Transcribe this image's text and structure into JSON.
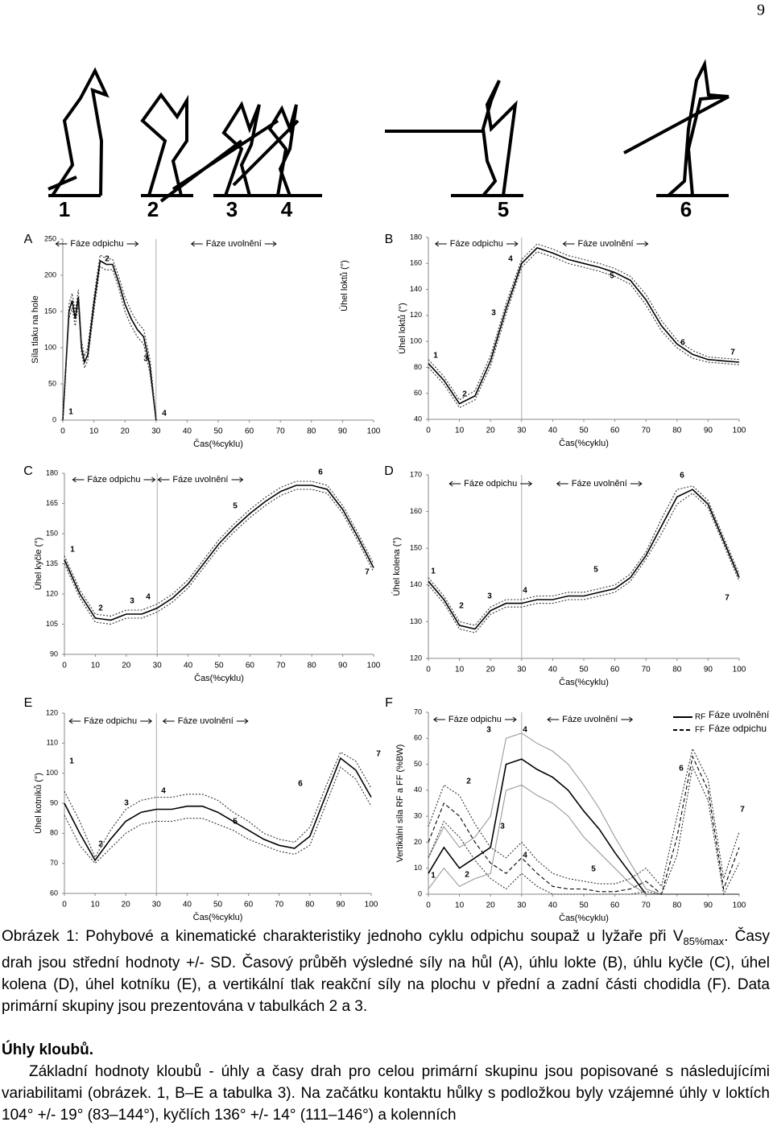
{
  "page_number": "9",
  "figure": {
    "stick_labels": [
      "1",
      "2",
      "3",
      "4",
      "5",
      "6"
    ],
    "charts": [
      {
        "type": "line",
        "letter": "A",
        "ylabel": "Síla tlaku na hole",
        "extra_label": "Úhel loktů (°)",
        "xlabel": "Čas(%cyklu)",
        "phases": [
          "Fáze odpichu",
          "Fáze uvolnění"
        ],
        "phase_boundary": 30,
        "x": [
          0,
          2,
          3,
          4,
          5,
          6,
          7,
          8,
          10,
          12,
          14,
          16,
          18,
          20,
          22,
          24,
          26,
          28,
          30
        ],
        "xlim": [
          0,
          100
        ],
        "xticks": [
          0,
          10,
          20,
          30,
          40,
          50,
          60,
          70,
          80,
          90,
          100
        ],
        "ylim": [
          0,
          250
        ],
        "yticks": [
          0,
          50,
          100,
          150,
          200,
          250
        ],
        "annotations": [
          "1",
          "2",
          "3",
          "4"
        ],
        "series": [
          {
            "style": "solid",
            "color": "#000000",
            "values": [
              0,
              150,
              165,
              140,
              170,
              100,
              80,
              90,
              160,
              220,
              215,
              215,
              190,
              160,
              140,
              125,
              115,
              75,
              0
            ]
          },
          {
            "style": "dotted",
            "color": "#333333",
            "values": [
              0,
              160,
              175,
              150,
              180,
              110,
              88,
              100,
              170,
              228,
              223,
              222,
              198,
              170,
              150,
              135,
              125,
              85,
              5
            ]
          },
          {
            "style": "dotted",
            "color": "#333333",
            "values": [
              0,
              140,
              155,
              130,
              160,
              92,
              72,
              82,
              150,
              212,
              207,
              208,
              182,
              150,
              130,
              115,
              105,
              65,
              0
            ]
          }
        ]
      },
      {
        "type": "line",
        "letter": "B",
        "ylabel": "Úhel loktů (°)",
        "xlabel": "Čas(%cyklu)",
        "phases": [
          "Fáze odpichu",
          "Fáze uvolnění"
        ],
        "phase_boundary": 30,
        "x": [
          0,
          5,
          10,
          15,
          20,
          25,
          30,
          35,
          40,
          45,
          50,
          55,
          60,
          65,
          70,
          75,
          80,
          85,
          90,
          95,
          100
        ],
        "xlim": [
          0,
          100
        ],
        "xticks": [
          0,
          10,
          20,
          30,
          40,
          50,
          60,
          70,
          80,
          90,
          100
        ],
        "ylim": [
          40,
          180
        ],
        "yticks": [
          40,
          60,
          80,
          100,
          120,
          140,
          160,
          180
        ],
        "annotations": [
          "1",
          "2",
          "3",
          "4",
          "5",
          "6",
          "7"
        ],
        "series": [
          {
            "style": "solid",
            "color": "#000000",
            "values": [
              83,
              70,
              52,
              58,
              85,
              125,
              160,
              172,
              168,
              163,
              160,
              157,
              153,
              147,
              132,
              112,
              98,
              90,
              86,
              85,
              84
            ]
          },
          {
            "style": "dotted",
            "color": "#333333",
            "values": [
              86,
              73,
              55,
              62,
              89,
              129,
              163,
              175,
              171,
              166,
              163,
              160,
              156,
              150,
              136,
              116,
              101,
              93,
              88,
              87,
              86
            ]
          },
          {
            "style": "dotted",
            "color": "#333333",
            "values": [
              80,
              67,
              49,
              55,
              81,
              121,
              157,
              169,
              165,
              160,
              157,
              154,
              150,
              144,
              128,
              108,
              95,
              87,
              84,
              83,
              82
            ]
          }
        ]
      },
      {
        "type": "line",
        "letter": "C",
        "ylabel": "Úhel kyčle (°)",
        "xlabel": "Čas(%cyklu)",
        "phases": [
          "Fáze odpichu",
          "Fáze uvolnění"
        ],
        "phase_boundary": 30,
        "x": [
          0,
          5,
          10,
          15,
          20,
          25,
          30,
          35,
          40,
          45,
          50,
          55,
          60,
          65,
          70,
          75,
          80,
          85,
          90,
          95,
          100
        ],
        "xlim": [
          0,
          100
        ],
        "xticks": [
          0,
          10,
          20,
          30,
          40,
          50,
          60,
          70,
          80,
          90,
          100
        ],
        "ylim": [
          90,
          180
        ],
        "yticks": [
          90,
          105,
          120,
          135,
          150,
          165,
          180
        ],
        "annotations": [
          "1",
          "2",
          "3",
          "4",
          "5",
          "6",
          "7"
        ],
        "series": [
          {
            "style": "solid",
            "color": "#000000",
            "values": [
              137,
              120,
              108,
              107,
              110,
              110,
              113,
              118,
              125,
              135,
              145,
              153,
              160,
              166,
              171,
              174,
              174,
              172,
              162,
              148,
              133
            ]
          },
          {
            "style": "dotted",
            "color": "#333333",
            "values": [
              139,
              122,
              110,
              109,
              112,
              112,
              115,
              120,
              127,
              137,
              147,
              155,
              162,
              168,
              173,
              176,
              176,
              174,
              164,
              150,
              135
            ]
          },
          {
            "style": "dotted",
            "color": "#333333",
            "values": [
              135,
              118,
              106,
              105,
              108,
              108,
              111,
              116,
              123,
              133,
              143,
              151,
              158,
              164,
              169,
              172,
              172,
              170,
              160,
              146,
              131
            ]
          }
        ]
      },
      {
        "type": "line",
        "letter": "D",
        "ylabel": "Úhel kolena (°)",
        "xlabel": "Čas(%cyklu)",
        "phases": [
          "Fáze odpichu",
          "Fáze uvolnění"
        ],
        "phase_boundary": 30,
        "x": [
          0,
          5,
          10,
          15,
          20,
          25,
          30,
          35,
          40,
          45,
          50,
          55,
          60,
          65,
          70,
          75,
          80,
          85,
          90,
          95,
          100
        ],
        "xlim": [
          0,
          100
        ],
        "xticks": [
          0,
          10,
          20,
          30,
          40,
          50,
          60,
          70,
          80,
          90,
          100
        ],
        "ylim": [
          120,
          170
        ],
        "yticks": [
          120,
          130,
          140,
          150,
          160,
          170
        ],
        "annotations": [
          "1",
          "2",
          "3",
          "4",
          "5",
          "6",
          "7"
        ],
        "series": [
          {
            "style": "solid",
            "color": "#000000",
            "values": [
              141,
              136,
              129,
              128,
              133,
              135,
              135,
              136,
              136,
              137,
              137,
              138,
              139,
              142,
              148,
              156,
              164,
              166,
              162,
              152,
              142
            ]
          },
          {
            "style": "dotted",
            "color": "#333333",
            "values": [
              142,
              137,
              130,
              129,
              134,
              136,
              136,
              137,
              137,
              138,
              138,
              139,
              140,
              143,
              149,
              158,
              166,
              167,
              163,
              153,
              143
            ]
          },
          {
            "style": "dotted",
            "color": "#333333",
            "values": [
              140,
              135,
              128,
              127,
              132,
              134,
              134,
              135,
              135,
              136,
              136,
              137,
              138,
              141,
              147,
              154,
              162,
              165,
              161,
              151,
              141
            ]
          }
        ]
      },
      {
        "type": "line",
        "letter": "E",
        "ylabel": "Úhel kotníků (°)",
        "xlabel": "Čas(%cyklu)",
        "phases": [
          "Fáze odpichu",
          "Fáze uvolnění"
        ],
        "phase_boundary": 30,
        "x": [
          0,
          5,
          10,
          15,
          20,
          25,
          30,
          35,
          40,
          45,
          50,
          55,
          60,
          65,
          70,
          75,
          80,
          85,
          90,
          95,
          100
        ],
        "xlim": [
          0,
          100
        ],
        "xticks": [
          0,
          10,
          20,
          30,
          40,
          50,
          60,
          70,
          80,
          90,
          100
        ],
        "ylim": [
          60,
          120
        ],
        "yticks": [
          60,
          70,
          80,
          90,
          100,
          110,
          120
        ],
        "annotations": [
          "1",
          "2",
          "3",
          "4",
          "5",
          "6",
          "7"
        ],
        "series": [
          {
            "style": "solid",
            "color": "#000000",
            "values": [
              90,
              80,
              71,
              78,
              84,
              87,
              88,
              88,
              89,
              89,
              87,
              84,
              81,
              78,
              76,
              75,
              79,
              92,
              105,
              101,
              92
            ]
          },
          {
            "style": "dotted",
            "color": "#333333",
            "values": [
              94,
              84,
              72,
              81,
              88,
              91,
              92,
              92,
              93,
              93,
              91,
              87,
              84,
              80,
              78,
              77,
              82,
              95,
              107,
              104,
              95
            ]
          },
          {
            "style": "dotted",
            "color": "#333333",
            "values": [
              86,
              76,
              70,
              75,
              80,
              83,
              84,
              84,
              85,
              85,
              83,
              81,
              78,
              76,
              74,
              73,
              76,
              89,
              102,
              98,
              89
            ]
          }
        ]
      },
      {
        "type": "line",
        "letter": "F",
        "ylabel": "Vertikální síla RF a FF (%BW)",
        "xlabel": "Čas(%cyklu)",
        "phases": [
          "Fáze odpichu",
          "Fáze uvolnění"
        ],
        "phase_boundary": 30,
        "legend_texts": [
          "Fáze uvolnění",
          "Fáze odpichu"
        ],
        "x": [
          0,
          5,
          10,
          15,
          20,
          25,
          30,
          35,
          40,
          45,
          50,
          55,
          60,
          65,
          70,
          75,
          80,
          85,
          90,
          95,
          100
        ],
        "xlim": [
          0,
          100
        ],
        "xticks": [
          0,
          10,
          20,
          30,
          40,
          50,
          60,
          70,
          80,
          90,
          100
        ],
        "ylim": [
          0,
          70
        ],
        "yticks": [
          0,
          10,
          20,
          30,
          40,
          50,
          60,
          70
        ],
        "annotations": [
          "1",
          "2",
          "3",
          "4",
          "2",
          "3",
          "4",
          "5",
          "6",
          "7"
        ],
        "series": [
          {
            "name": "RF",
            "style": "solid",
            "color": "#000000",
            "values": [
              8,
              18,
              10,
              14,
              18,
              50,
              52,
              48,
              45,
              40,
              32,
              25,
              16,
              8,
              0,
              0,
              0,
              0,
              0,
              0,
              0
            ]
          },
          {
            "name": "FF",
            "style": "dashed",
            "color": "#000000",
            "values": [
              20,
              35,
              30,
              20,
              12,
              8,
              14,
              8,
              3,
              2,
              2,
              1,
              1,
              2,
              5,
              0,
              22,
              53,
              40,
              2,
              18
            ]
          },
          {
            "style": "solid",
            "color": "#999999",
            "values": [
              14,
              26,
              18,
              22,
              30,
              60,
              62,
              58,
              55,
              50,
              42,
              33,
              22,
              12,
              2,
              0,
              0,
              0,
              0,
              0,
              0
            ]
          },
          {
            "style": "solid",
            "color": "#999999",
            "values": [
              2,
              10,
              3,
              6,
              8,
              40,
              42,
              38,
              35,
              30,
              22,
              16,
              10,
              4,
              0,
              0,
              0,
              0,
              0,
              0,
              0
            ]
          },
          {
            "style": "dotted",
            "color": "#333333",
            "values": [
              26,
              42,
              38,
              27,
              18,
              14,
              20,
              13,
              8,
              6,
              5,
              4,
              4,
              6,
              10,
              3,
              30,
              56,
              44,
              6,
              24
            ]
          },
          {
            "style": "dotted",
            "color": "#333333",
            "values": [
              14,
              28,
              22,
              13,
              6,
              2,
              8,
              3,
              0,
              0,
              0,
              0,
              0,
              0,
              1,
              0,
              15,
              49,
              36,
              0,
              12
            ]
          }
        ]
      }
    ]
  },
  "caption": [
    "Obrázek 1: Pohybové a kinematické charakteristiky jednoho cyklu odpichu soupaž u lyžaře při V",
    "85%max",
    ". Časy drah jsou střední hodnoty +/- SD. Časový průběh výsledné síly na hůl (A), úhlu lokte (B), úhlu kyčle (C), úhel kolena (D), úhel kotníku (E), a vertikální tlak reakční síly na plochu v přední a zadní části chodidla (F). Data primární skupiny jsou prezentována v tabulkách 2 a 3."
  ],
  "heading": "Úhly kloubů.",
  "paragraph": "Základní hodnoty kloubů - úhly a časy drah pro celou primární skupinu jsou popisované s následujícími variabilitami (obrázek. 1, B–E a tabulka 3). Na začátku kontaktu hůlky s podložkou byly vzájemné úhly v loktích 104° +/- 19° (83–144°), kyčlích 136° +/- 14° (111–146°) a kolenních"
}
